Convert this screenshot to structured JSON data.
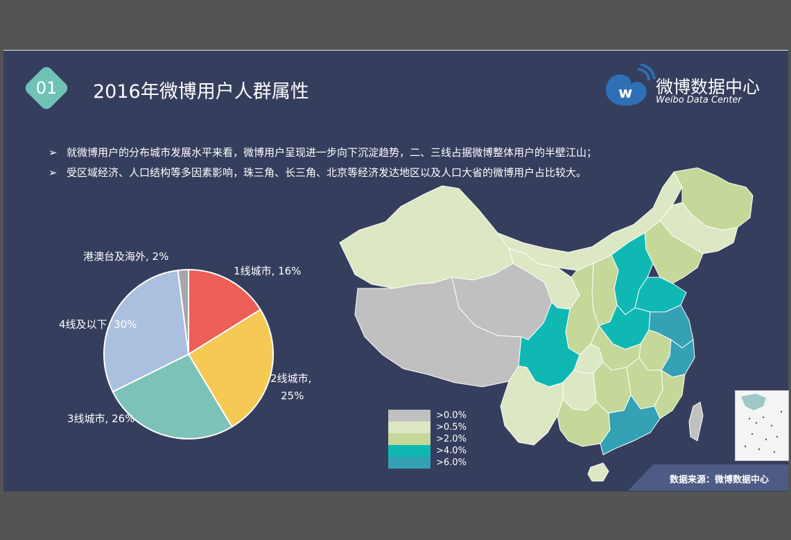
{
  "header": {
    "number": "01",
    "title": "2016年微博用户人群属性",
    "logo_cn": "微博数据中心",
    "logo_en": "Weibo Data Center"
  },
  "bullets": [
    "就微博用户的分布城市发展水平来看，微博用户呈现进一步向下沉淀趋势，二、三线占据微博整体用户的半壁江山；",
    "受区域经济、人口结构等多因素影响，珠三角、长三角、北京等经济发达地区以及人口大省的微博用户占比较大。"
  ],
  "chart_data": [
    {
      "type": "pie",
      "slices": [
        {
          "label": "1线城市",
          "value": 16,
          "display": "1线城市, 16%",
          "color": "#ec5f56"
        },
        {
          "label": "2线城市",
          "value": 25,
          "display_line1": "2线城市,",
          "display_line2": "25%",
          "color": "#f6c854"
        },
        {
          "label": "3线城市",
          "value": 26,
          "display": "3线城市, 26%",
          "color": "#7cc2b8"
        },
        {
          "label": "4线及以下",
          "value": 30,
          "display": "4线及以下, 30%",
          "color": "#abc0de"
        },
        {
          "label": "港澳台及海外",
          "value": 2,
          "display": "港澳台及海外, 2%",
          "color": "#a5a7aa"
        }
      ]
    },
    {
      "type": "heatmap",
      "legend": [
        {
          "label": ">0.0%",
          "color": "#c0c0c0"
        },
        {
          "label": ">0.5%",
          "color": "#dce7c3"
        },
        {
          "label": ">2.0%",
          "color": "#c3d899"
        },
        {
          "label": ">4.0%",
          "color": "#10b8b3"
        },
        {
          "label": ">6.0%",
          "color": "#34a1b4"
        }
      ]
    }
  ],
  "footer": {
    "source": "数据来源：微博数据中心"
  }
}
